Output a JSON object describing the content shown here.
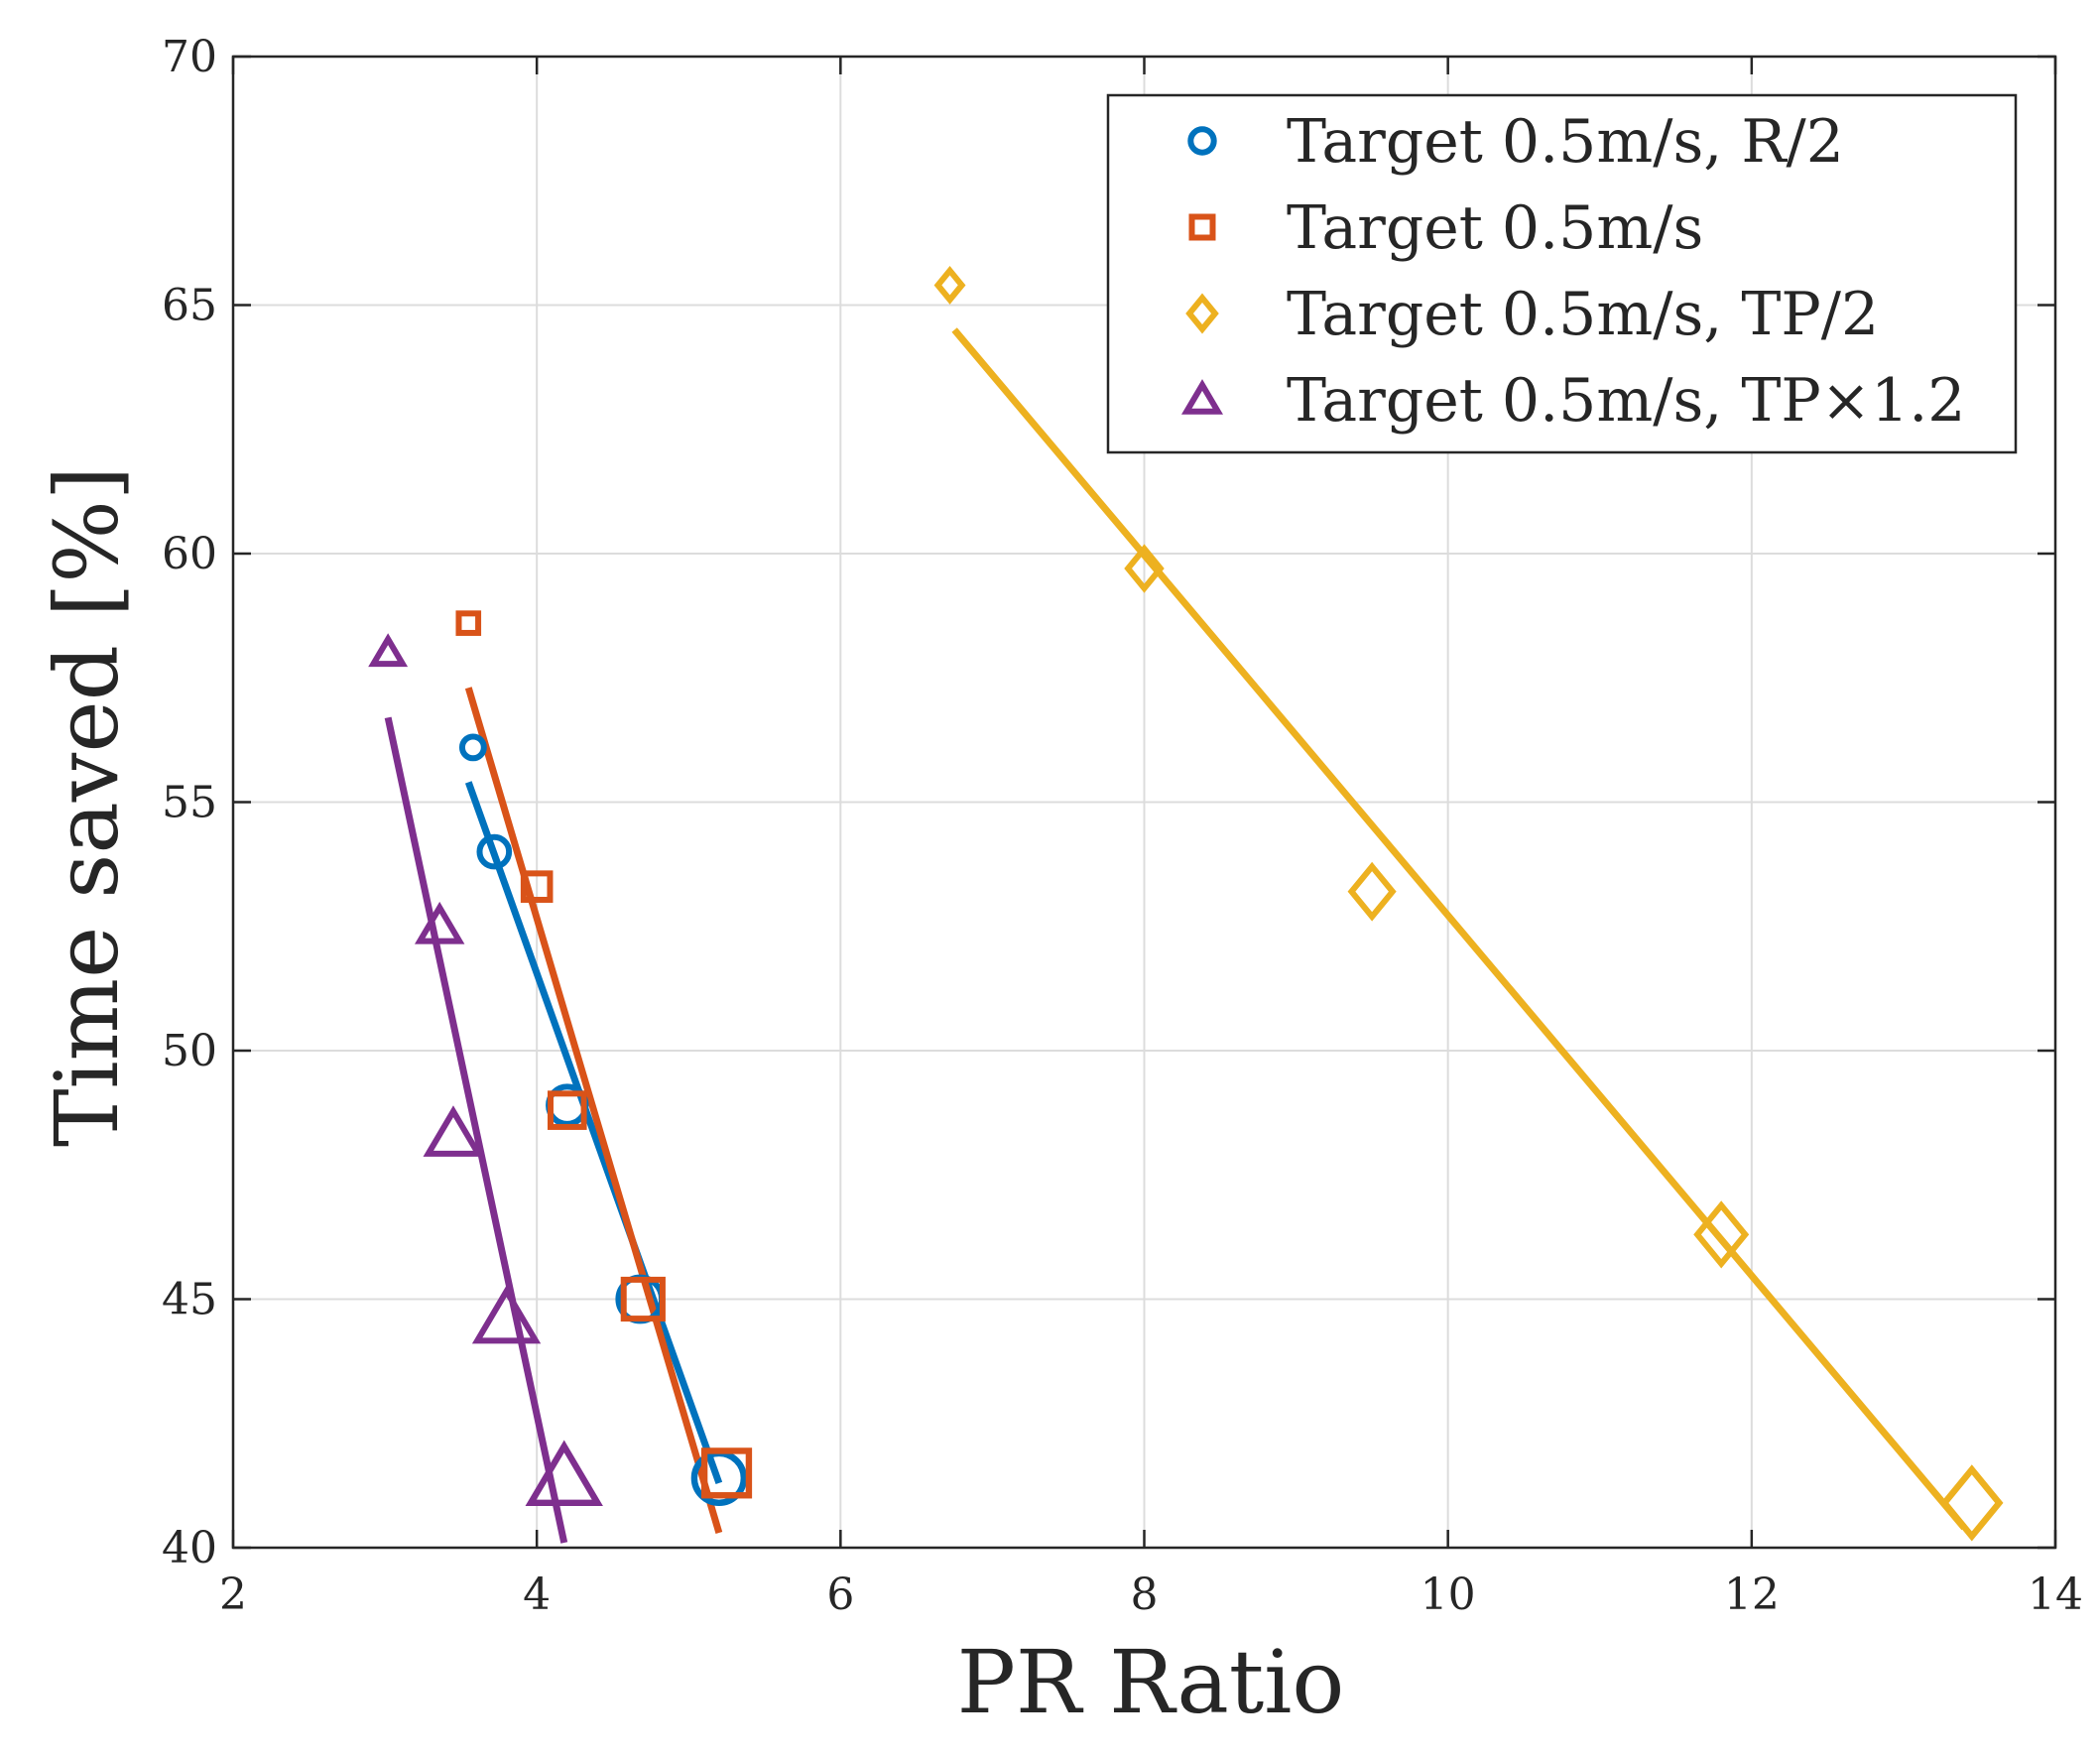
{
  "chart_data": {
    "type": "scatter",
    "title": "",
    "xlabel": "PR Ratio",
    "ylabel": "Time saved [%]",
    "xlim": [
      2,
      14
    ],
    "ylim": [
      40,
      70
    ],
    "xticks": [
      "2",
      "4",
      "6",
      "8",
      "10",
      "12",
      "14"
    ],
    "yticks": [
      "40",
      "45",
      "50",
      "55",
      "60",
      "65",
      "70"
    ],
    "grid": true,
    "legend_position": "top-right",
    "series": [
      {
        "name": "Target 0.5m/s, R/2",
        "marker": "circle",
        "color": "#0072BD",
        "x": [
          3.58,
          3.72,
          4.2,
          4.68,
          5.2
        ],
        "y": [
          56.1,
          54.0,
          48.9,
          45.0,
          41.4
        ],
        "fit": {
          "x": [
            3.55,
            5.2
          ],
          "y": [
            55.4,
            41.3
          ]
        }
      },
      {
        "name": "Target 0.5m/s",
        "marker": "square",
        "color": "#D95319",
        "x": [
          3.55,
          4.0,
          4.2,
          4.7,
          5.25
        ],
        "y": [
          58.6,
          53.3,
          48.8,
          45.0,
          41.5
        ],
        "fit": {
          "x": [
            3.55,
            5.2
          ],
          "y": [
            57.3,
            40.3
          ]
        }
      },
      {
        "name": "Target 0.5m/s, TP/2",
        "marker": "diamond",
        "color": "#EDB120",
        "x": [
          6.72,
          8.0,
          9.5,
          11.8,
          13.45
        ],
        "y": [
          65.4,
          59.7,
          53.2,
          46.3,
          40.9
        ],
        "fit": {
          "x": [
            6.75,
            13.4
          ],
          "y": [
            64.5,
            40.4
          ]
        }
      },
      {
        "name": "Target 0.5m/s, TP×1.2",
        "marker": "triangle",
        "color": "#7E2F8E",
        "x": [
          3.02,
          3.36,
          3.45,
          3.8,
          4.18
        ],
        "y": [
          58.0,
          52.5,
          48.3,
          44.6,
          41.4
        ],
        "fit": {
          "x": [
            3.02,
            4.18
          ],
          "y": [
            56.7,
            40.1
          ]
        }
      }
    ]
  }
}
